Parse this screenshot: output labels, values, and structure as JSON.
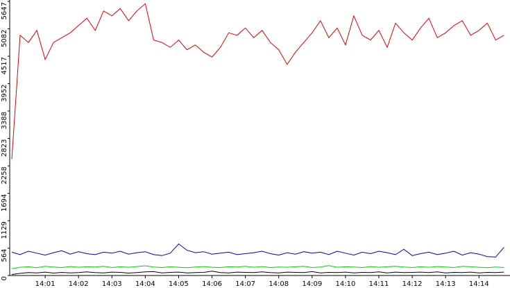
{
  "chart_data": {
    "type": "line",
    "x": [
      0,
      0.25,
      0.5,
      0.75,
      1,
      1.25,
      1.5,
      1.75,
      2,
      2.25,
      2.5,
      2.75,
      3,
      3.25,
      3.5,
      3.75,
      4,
      4.25,
      4.5,
      4.75,
      5,
      5.25,
      5.5,
      5.75,
      6,
      6.25,
      6.5,
      6.75,
      7,
      7.25,
      7.5,
      7.75,
      8,
      8.25,
      8.5,
      8.75,
      9,
      9.25,
      9.5,
      9.75,
      10,
      10.25,
      10.5,
      10.75,
      11,
      11.25,
      11.5,
      11.75,
      12,
      12.25,
      12.5,
      12.75,
      13,
      13.25,
      13.5,
      13.75,
      14,
      14.25,
      14.5,
      14.75
    ],
    "xlim": [
      0,
      14.93
    ],
    "xticks": [
      {
        "value": 1,
        "label": "14:01"
      },
      {
        "value": 2,
        "label": "14:02"
      },
      {
        "value": 3,
        "label": "14:03"
      },
      {
        "value": 4,
        "label": "14:04"
      },
      {
        "value": 5,
        "label": "14:05"
      },
      {
        "value": 6,
        "label": "14:06"
      },
      {
        "value": 7,
        "label": "14:07"
      },
      {
        "value": 8,
        "label": "14:08"
      },
      {
        "value": 9,
        "label": "14:09"
      },
      {
        "value": 10,
        "label": "14:10"
      },
      {
        "value": 11,
        "label": "14:11"
      },
      {
        "value": 12,
        "label": "14:12"
      },
      {
        "value": 13,
        "label": "14:13"
      },
      {
        "value": 14,
        "label": "14:14"
      }
    ],
    "ylim": [
      0,
      5647
    ],
    "yticks": [
      0,
      564,
      1129,
      1694,
      2258,
      2823,
      3388,
      3952,
      4517,
      5082,
      5647
    ],
    "series": [
      {
        "color": "#e00000",
        "values": [
          2400,
          4950,
          4800,
          5050,
          4450,
          4800,
          4900,
          5000,
          5150,
          5300,
          5050,
          5450,
          5350,
          5500,
          5250,
          5450,
          5600,
          4850,
          4800,
          4700,
          4850,
          4650,
          4750,
          4600,
          4500,
          4700,
          5000,
          4950,
          5100,
          4900,
          5050,
          4800,
          4650,
          4350,
          4600,
          4800,
          5000,
          5250,
          4900,
          5100,
          4750,
          5350,
          4950,
          4850,
          5050,
          4700,
          5200,
          5000,
          4850,
          5100,
          5300,
          4900,
          5000,
          5150,
          5250,
          4950,
          5050,
          5200,
          4850,
          4950
        ]
      },
      {
        "color": "#0000b0",
        "values": [
          480,
          430,
          500,
          460,
          420,
          470,
          510,
          440,
          490,
          450,
          430,
          480,
          460,
          500,
          440,
          470,
          490,
          430,
          410,
          460,
          650,
          520,
          470,
          490,
          440,
          460,
          480,
          430,
          450,
          470,
          500,
          450,
          420,
          470,
          440,
          490,
          460,
          480,
          430,
          500,
          460,
          420,
          480,
          450,
          500,
          470,
          430,
          540,
          410,
          450,
          480,
          430,
          460,
          500,
          420,
          470,
          440,
          390,
          380,
          580
        ]
      },
      {
        "color": "#00d000",
        "values": [
          140,
          170,
          180,
          160,
          190,
          175,
          165,
          185,
          170,
          180,
          175,
          190,
          165,
          180,
          170,
          185,
          200,
          175,
          165,
          180,
          170,
          160,
          175,
          185,
          170,
          165,
          180,
          175,
          190,
          170,
          185,
          165,
          175,
          170,
          180,
          190,
          165,
          175,
          205,
          170,
          180,
          175,
          165,
          185,
          170,
          180,
          190,
          175,
          165,
          180,
          170,
          185,
          175,
          165,
          190,
          180,
          170,
          160,
          175,
          165
        ]
      },
      {
        "color": "#000000",
        "values": [
          20,
          45,
          60,
          55,
          70,
          50,
          65,
          55,
          60,
          75,
          60,
          55,
          70,
          65,
          50,
          60,
          75,
          80,
          55,
          65,
          70,
          55,
          60,
          65,
          90,
          60,
          55,
          70,
          65,
          60,
          75,
          60,
          55,
          70,
          65,
          60,
          80,
          55,
          65,
          60,
          70,
          55,
          65,
          60,
          75,
          55,
          70,
          60,
          65,
          70,
          60,
          75,
          55,
          65,
          60,
          70,
          55,
          65,
          60,
          70
        ]
      }
    ]
  }
}
